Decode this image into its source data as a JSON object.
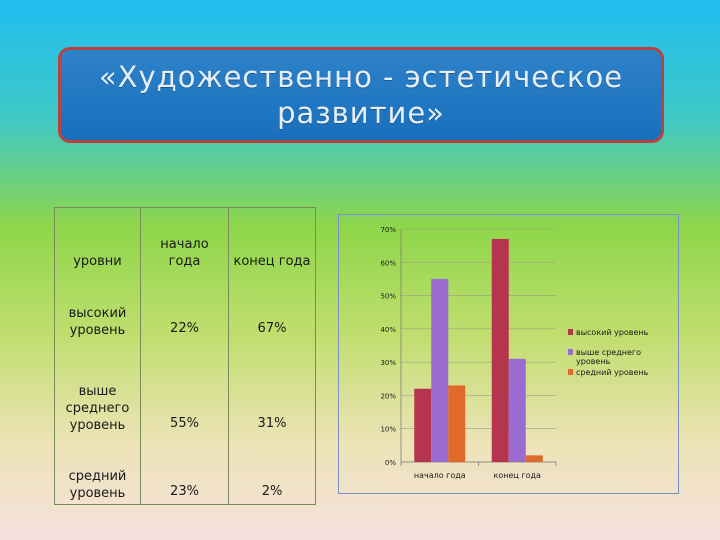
{
  "title": "«Художественно - эстетическое развитие»",
  "table": {
    "headers": [
      "уровни",
      "начало года",
      "конец года"
    ],
    "rows": [
      {
        "level": "высокий уровень",
        "start": "22%",
        "end": "67%"
      },
      {
        "level": "выше среднего уровень",
        "start": "55%",
        "end": "31%"
      },
      {
        "level": "средний уровень",
        "start": "23%",
        "end": "2%"
      }
    ]
  },
  "chart_data": {
    "type": "bar",
    "categories": [
      "начало года",
      "конец года"
    ],
    "series": [
      {
        "name": "высокий уровень",
        "values": [
          22,
          67
        ],
        "color": "#b5354f"
      },
      {
        "name": "выше среднего уровень",
        "values": [
          55,
          31
        ],
        "color": "#9a6bd0"
      },
      {
        "name": "средний уровень",
        "values": [
          23,
          2
        ],
        "color": "#e0692c"
      }
    ],
    "yticks": [
      "0%",
      "10%",
      "20%",
      "30%",
      "40%",
      "50%",
      "60%",
      "70%"
    ],
    "ylim": [
      0,
      70
    ],
    "grid": true,
    "legend": "right"
  }
}
